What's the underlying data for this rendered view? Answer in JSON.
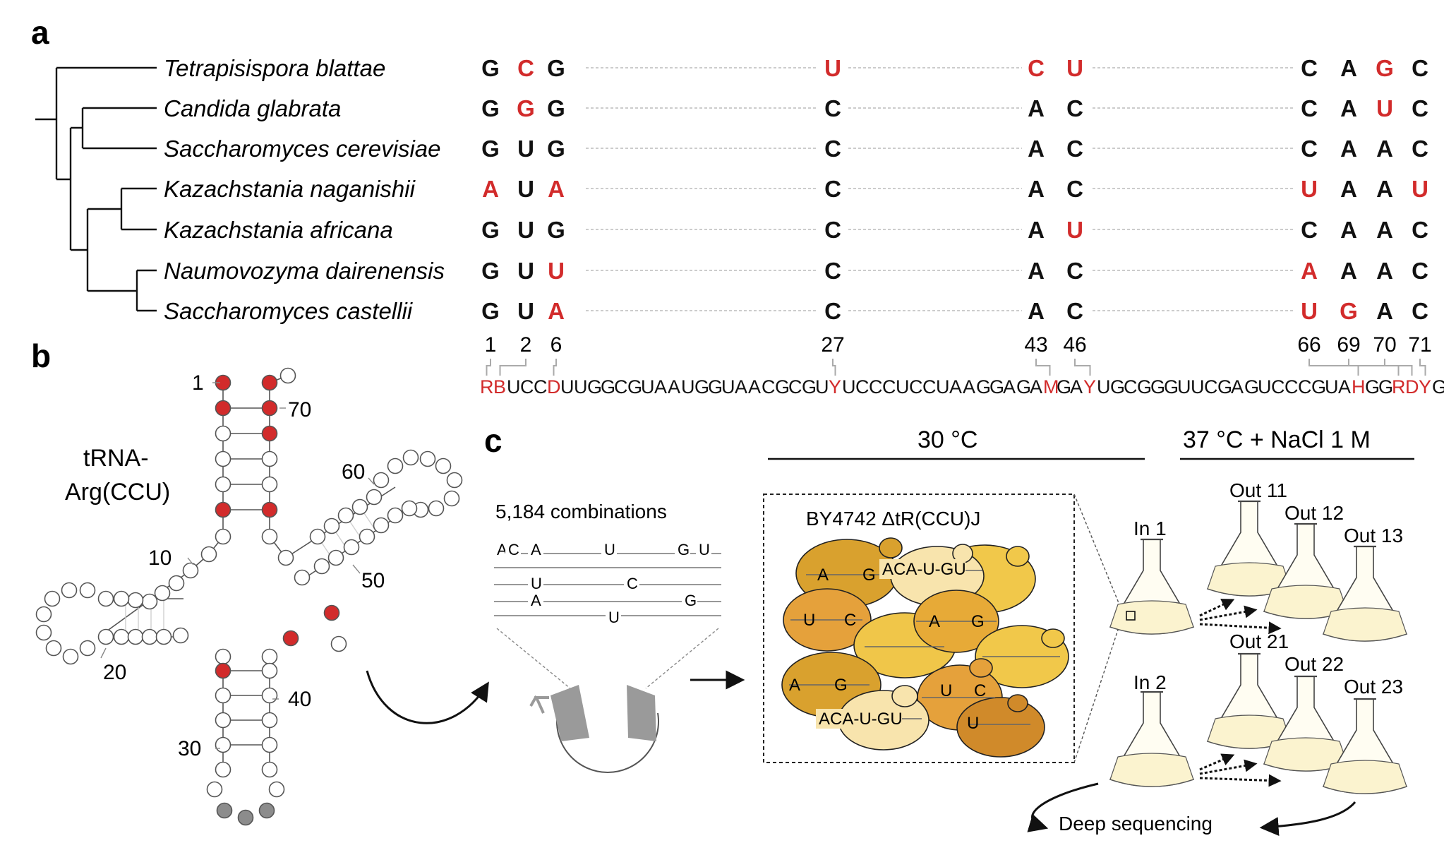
{
  "colors": {
    "red": "#d22b2b",
    "black": "#111111",
    "gray": "#9a9a9a"
  },
  "panel_labels": {
    "a": "a",
    "b": "b",
    "c": "c"
  },
  "species": [
    "Tetrapisispora blattae",
    "Candida glabrata",
    "Saccharomyces cerevisiae",
    "Kazachstania naganishii",
    "Kazachstania africana",
    "Naumovozyma dairenensis",
    "Saccharomyces castellii"
  ],
  "alignment": [
    [
      "G",
      "C",
      "G",
      "U",
      "C",
      "U",
      "C",
      "A",
      "G",
      "C"
    ],
    [
      "G",
      "G",
      "G",
      "C",
      "A",
      "C",
      "C",
      "A",
      "U",
      "C"
    ],
    [
      "G",
      "U",
      "G",
      "C",
      "A",
      "C",
      "C",
      "A",
      "A",
      "C"
    ],
    [
      "A",
      "U",
      "A",
      "C",
      "A",
      "C",
      "U",
      "A",
      "A",
      "U"
    ],
    [
      "G",
      "U",
      "G",
      "C",
      "A",
      "U",
      "C",
      "A",
      "A",
      "C"
    ],
    [
      "G",
      "U",
      "U",
      "C",
      "A",
      "C",
      "A",
      "A",
      "A",
      "C"
    ],
    [
      "G",
      "U",
      "A",
      "C",
      "A",
      "C",
      "U",
      "G",
      "A",
      "C"
    ]
  ],
  "alignment_red": [
    [
      0,
      1,
      0,
      1,
      1,
      1,
      0,
      0,
      1,
      0
    ],
    [
      0,
      1,
      0,
      0,
      0,
      0,
      0,
      0,
      1,
      0
    ],
    [
      0,
      0,
      0,
      0,
      0,
      0,
      0,
      0,
      0,
      0
    ],
    [
      1,
      0,
      1,
      0,
      0,
      0,
      1,
      0,
      0,
      1
    ],
    [
      0,
      0,
      0,
      0,
      0,
      1,
      0,
      0,
      0,
      0
    ],
    [
      0,
      0,
      1,
      0,
      0,
      0,
      1,
      0,
      0,
      0
    ],
    [
      0,
      0,
      1,
      0,
      0,
      0,
      1,
      1,
      0,
      0
    ]
  ],
  "positions": [
    "1",
    "2",
    "6",
    "27",
    "43",
    "46",
    "66",
    "69",
    "70",
    "71"
  ],
  "consensus": "RBUCCDUUGGCGUAAUGGUAACGCGUYUCCCUCCUAAGGAGAMGAYUGCGGGUUCGAGUCCCGUAHGGRDYG",
  "consensus_red_indices": [
    0,
    1,
    5,
    26,
    42,
    45,
    65,
    68,
    69,
    70
  ],
  "trna": {
    "name_line1": "tRNA-",
    "name_line2": "Arg(CCU)",
    "labels": [
      "1",
      "70",
      "60",
      "50",
      "10",
      "20",
      "40",
      "30"
    ]
  },
  "panel_c": {
    "temp_30": "30 °C",
    "temp_37": "37 °C + NaCl 1 M",
    "combinations": "5,184 combinations",
    "strain": "BY4742 ΔtR(CCU)J",
    "combo_lines": [
      [
        "A",
        "C",
        "A",
        "U",
        "G",
        "U"
      ],
      [
        "U",
        "C"
      ],
      [
        "A",
        "G"
      ],
      [
        "U"
      ]
    ],
    "cell_labels": [
      "A",
      "G",
      "ACA-U-GU",
      "U",
      "C",
      "A",
      "G",
      "A",
      "G",
      "U",
      "C",
      "ACA-U-GU",
      "U"
    ],
    "flasks_in": [
      "In 1",
      "In 2"
    ],
    "flasks_out": [
      "Out 11",
      "Out 12",
      "Out 13",
      "Out 21",
      "Out 22",
      "Out 23"
    ],
    "deep_seq": "Deep sequencing"
  }
}
